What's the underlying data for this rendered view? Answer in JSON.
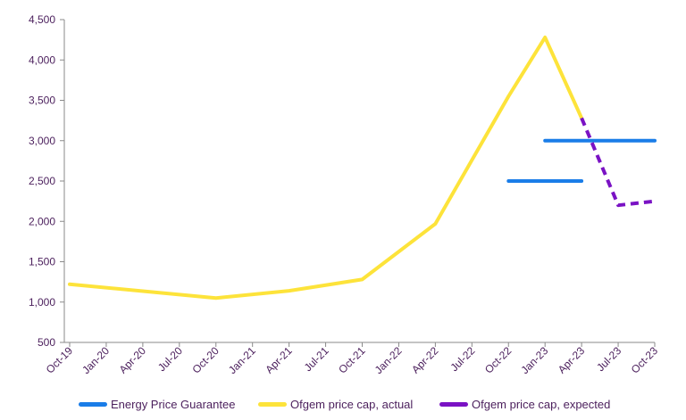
{
  "chart_data": {
    "type": "line",
    "x_ticks": [
      "Oct-19",
      "Jan-20",
      "Apr-20",
      "Jul-20",
      "Oct-20",
      "Jan-21",
      "Apr-21",
      "Jul-21",
      "Oct-21",
      "Jan-22",
      "Apr-22",
      "Jul-22",
      "Oct-22",
      "Jan-23",
      "Apr-23",
      "Jul-23",
      "Oct-23"
    ],
    "y_ticks": [
      "500",
      "1,000",
      "1,500",
      "2,000",
      "2,500",
      "3,000",
      "3,500",
      "4,000",
      "4,500"
    ],
    "ylim": [
      500,
      4500
    ],
    "grid": false,
    "legend_position": "bottom",
    "series": [
      {
        "name": "Energy Price Guarantee",
        "color": "#1a7de8",
        "style": "solid",
        "segments": [
          [
            {
              "x": "Oct-22",
              "y": 2500
            },
            {
              "x": "Apr-23",
              "y": 2500
            }
          ],
          [
            {
              "x": "Jan-23",
              "y": 3000
            },
            {
              "x": "Oct-23",
              "y": 3000
            }
          ]
        ]
      },
      {
        "name": "Ofgem price cap, actual",
        "color": "#fde33a",
        "style": "solid",
        "segments": [
          [
            {
              "x": "Oct-19",
              "y": 1220
            },
            {
              "x": "Oct-20",
              "y": 1050
            },
            {
              "x": "Apr-21",
              "y": 1140
            },
            {
              "x": "Oct-21",
              "y": 1280
            },
            {
              "x": "Apr-22",
              "y": 1970
            },
            {
              "x": "Oct-22",
              "y": 3550
            },
            {
              "x": "Jan-23",
              "y": 4280
            },
            {
              "x": "Apr-23",
              "y": 3280
            }
          ]
        ]
      },
      {
        "name": "Ofgem price cap, expected",
        "color": "#7a12c4",
        "style": "dashed",
        "segments": [
          [
            {
              "x": "Apr-23",
              "y": 3280
            },
            {
              "x": "Jul-23",
              "y": 2200
            },
            {
              "x": "Oct-23",
              "y": 2250
            }
          ]
        ]
      }
    ]
  }
}
